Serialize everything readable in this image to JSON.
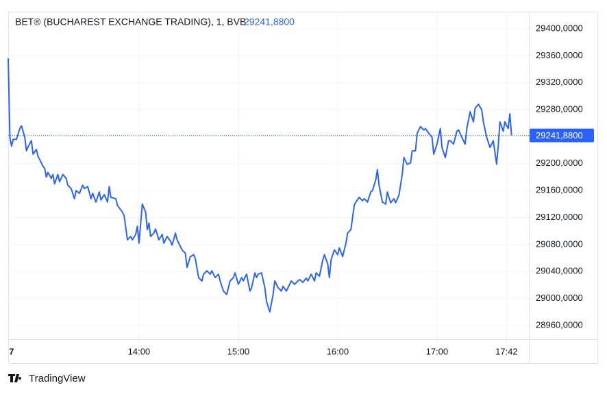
{
  "chart_data": {
    "type": "line",
    "title": "BET® (BUCHAREST EXCHANGE TRADING), 1, BVB",
    "last_label": "29241,8800",
    "brand": "TradingView",
    "grid": true,
    "xlim": [
      761,
      1075.5
    ],
    "ylim": [
      28939.6,
      29424.4
    ],
    "xticks": [
      {
        "value": 763,
        "label": "7"
      },
      {
        "value": 840,
        "label": "14:00"
      },
      {
        "value": 900,
        "label": "15:00"
      },
      {
        "value": 960,
        "label": "16:00"
      },
      {
        "value": 1020,
        "label": "17:00"
      },
      {
        "value": 1062,
        "label": "17:42"
      }
    ],
    "yticks": [
      {
        "value": 28960,
        "label": "28960,0000"
      },
      {
        "value": 29000,
        "label": "29000,0000"
      },
      {
        "value": 29040,
        "label": "29040,0000"
      },
      {
        "value": 29080,
        "label": "29080,0000"
      },
      {
        "value": 29120,
        "label": "29120,0000"
      },
      {
        "value": 29160,
        "label": "29160,0000"
      },
      {
        "value": 29200,
        "label": "29200,0000"
      },
      {
        "value": 29240,
        "label": "29240,0000"
      },
      {
        "value": 29280,
        "label": "29280,0000"
      },
      {
        "value": 29320,
        "label": "29320,0000"
      },
      {
        "value": 29360,
        "label": "29360,0000"
      },
      {
        "value": 29400,
        "label": "29400,0000"
      }
    ],
    "x": [
      761,
      762,
      763,
      764,
      766,
      768,
      769,
      771,
      772,
      773,
      775,
      776,
      778,
      779,
      782,
      783,
      784,
      785,
      787,
      788,
      789,
      791,
      792,
      794,
      796,
      797,
      799,
      801,
      802,
      804,
      806,
      807,
      809,
      811,
      812,
      814,
      816,
      817,
      819,
      821,
      822,
      823,
      826,
      827,
      830,
      831,
      833,
      835,
      836,
      838,
      839,
      840,
      842,
      844,
      845,
      846,
      847,
      849,
      850,
      852,
      854,
      855,
      857,
      859,
      860,
      862,
      863,
      864,
      866,
      868,
      869,
      871,
      873,
      874,
      876,
      878,
      879,
      881,
      883,
      884,
      886,
      888,
      889,
      891,
      893,
      894,
      895,
      897,
      898,
      900,
      902,
      903,
      905,
      907,
      908,
      910,
      911,
      912,
      914,
      916,
      917,
      919,
      921,
      922,
      924,
      926,
      927,
      929,
      931,
      932,
      934,
      936,
      937,
      939,
      941,
      942,
      944,
      946,
      947,
      949,
      951,
      952,
      954,
      955,
      956,
      958,
      960,
      961,
      963,
      965,
      966,
      968,
      970,
      971,
      973,
      975,
      976,
      978,
      980,
      981,
      983,
      984,
      985,
      987,
      989,
      990,
      992,
      994,
      995,
      997,
      999,
      1000,
      1002,
      1004,
      1005,
      1007,
      1008,
      1010,
      1012,
      1013,
      1015,
      1017,
      1018,
      1020,
      1022,
      1023,
      1025,
      1027,
      1028,
      1030,
      1032,
      1033,
      1035,
      1037,
      1038,
      1040,
      1042,
      1043,
      1045,
      1047,
      1048,
      1050,
      1052,
      1053,
      1054,
      1056,
      1057,
      1058,
      1060,
      1061,
      1063,
      1064,
      1065
    ],
    "series": [
      {
        "name": "BET",
        "color": "#2962ff",
        "axis": "y",
        "values": [
          29356,
          29239,
          29226,
          29236,
          29236,
          29252,
          29256,
          29239,
          29219,
          29225,
          29234,
          29214,
          29221,
          29211,
          29196,
          29193,
          29180,
          29187,
          29178,
          29184,
          29170,
          29184,
          29173,
          29184,
          29178,
          29168,
          29163,
          29148,
          29160,
          29156,
          29168,
          29163,
          29166,
          29148,
          29156,
          29143,
          29158,
          29146,
          29154,
          29143,
          29166,
          29150,
          29148,
          29138,
          29128,
          29123,
          29087,
          29092,
          29087,
          29095,
          29107,
          29082,
          29140,
          29128,
          29102,
          29112,
          29092,
          29097,
          29103,
          29087,
          29095,
          29082,
          29092,
          29085,
          29079,
          29097,
          29087,
          29082,
          29072,
          29067,
          29046,
          29062,
          29065,
          29059,
          29031,
          29026,
          29036,
          29041,
          29036,
          29041,
          29031,
          29036,
          29026,
          29011,
          29006,
          29016,
          29026,
          29031,
          29038,
          29021,
          29031,
          29026,
          29036,
          29011,
          29016,
          29038,
          29031,
          29036,
          29038,
          29016,
          28996,
          28980,
          29006,
          29026,
          29016,
          29011,
          29018,
          29011,
          29021,
          29026,
          29021,
          29026,
          29028,
          29024,
          29030,
          29026,
          29036,
          29026,
          29038,
          29033,
          29057,
          29065,
          29051,
          29031,
          29057,
          29072,
          29065,
          29075,
          29062,
          29082,
          29097,
          29102,
          29138,
          29143,
          29150,
          29145,
          29148,
          29143,
          29158,
          29160,
          29176,
          29191,
          29168,
          29143,
          29140,
          29158,
          29142,
          29148,
          29142,
          29153,
          29184,
          29209,
          29199,
          29201,
          29219,
          29219,
          29245,
          29255,
          29250,
          29252,
          29245,
          29239,
          29214,
          29229,
          29252,
          29224,
          29209,
          29234,
          29234,
          29229,
          29248,
          29250,
          29239,
          29229,
          29252,
          29277,
          29262,
          29282,
          29288,
          29280,
          29262,
          29239,
          29224,
          29229,
          29234,
          29199,
          29227,
          29262,
          29248,
          29262,
          29252,
          29274,
          29241.88
        ]
      }
    ]
  }
}
